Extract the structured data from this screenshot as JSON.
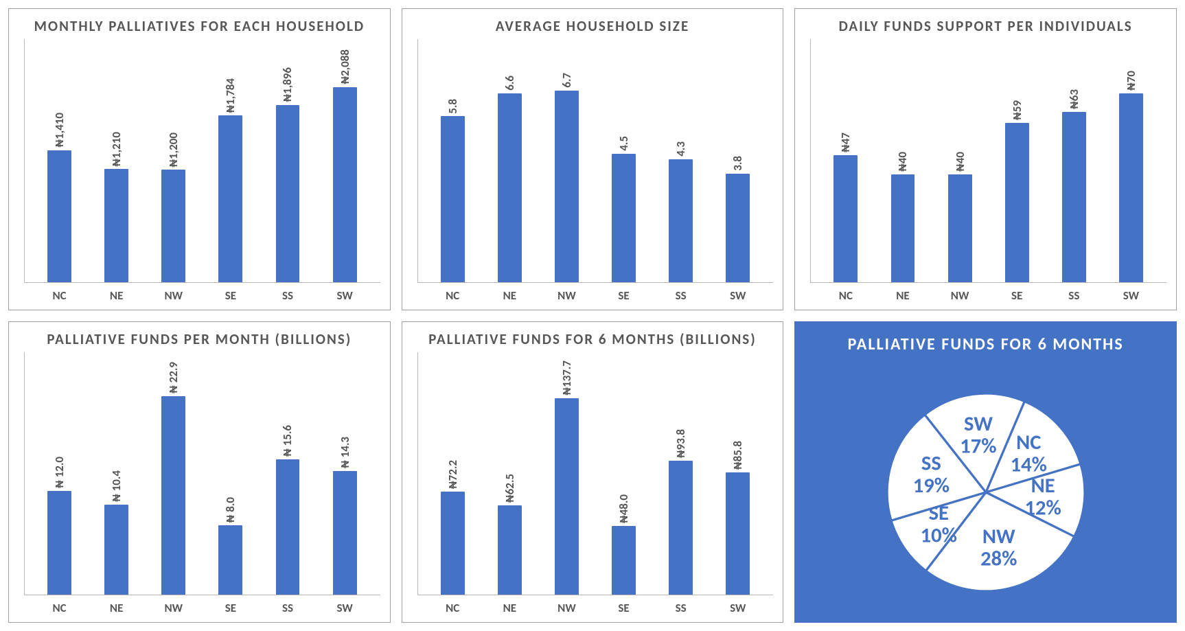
{
  "palette": {
    "bar_color": "#4472c4",
    "pie_bg": "#4472c4",
    "slice_fill": "#ffffff",
    "slice_stroke": "#4472c4",
    "axis_color": "#b7b7b7",
    "text_color": "#575757"
  },
  "categories": [
    "NC",
    "NE",
    "NW",
    "SE",
    "SS",
    "SW"
  ],
  "charts": [
    {
      "id": "monthly_palliatives_household",
      "type": "bar",
      "title": "MONTHLY PALLIATIVES FOR EACH HOUSEHOLD",
      "labels": [
        "₦1,410",
        "₦1,210",
        "₦1,200",
        "₦1,784",
        "₦1,896",
        "₦2,088"
      ],
      "values": [
        1410,
        1210,
        1200,
        1784,
        1896,
        2088
      ],
      "ymax": 2600
    },
    {
      "id": "avg_household_size",
      "type": "bar",
      "title": "AVERAGE HOUSEHOLD SIZE",
      "labels": [
        "5.8",
        "6.6",
        "6.7",
        "4.5",
        "4.3",
        "3.8"
      ],
      "values": [
        5.8,
        6.6,
        6.7,
        4.5,
        4.3,
        3.8
      ],
      "ymax": 8.5
    },
    {
      "id": "daily_funds_per_individual",
      "type": "bar",
      "title": "DAILY FUNDS SUPPORT PER INDIVIDUALS",
      "labels": [
        "₦47",
        "₦40",
        "₦40",
        "₦59",
        "₦63",
        "₦70"
      ],
      "values": [
        47,
        40,
        40,
        59,
        63,
        70
      ],
      "ymax": 90
    },
    {
      "id": "palliative_funds_per_month",
      "type": "bar",
      "title": "PALLIATIVE FUNDS PER MONTH (BILLIONS)",
      "labels": [
        "₦ 12.0",
        "₦ 10.4",
        "₦ 22.9",
        "₦ 8.0",
        "₦ 15.6",
        "₦ 14.3"
      ],
      "values": [
        12.0,
        10.4,
        22.9,
        8.0,
        15.6,
        14.3
      ],
      "ymax": 28
    },
    {
      "id": "palliative_funds_6months",
      "type": "bar",
      "title": "PALLIATIVE FUNDS FOR 6 MONTHS (BILLIONS)",
      "labels": [
        "₦72.2",
        "₦62.5",
        "₦137.7",
        "₦48.0",
        "₦93.8",
        "₦85.8"
      ],
      "values": [
        72.2,
        62.5,
        137.7,
        48.0,
        93.8,
        85.8
      ],
      "ymax": 170
    }
  ],
  "pie": {
    "title": "PALLIATIVE FUNDS FOR 6 MONTHS",
    "slices": [
      {
        "name": "NC",
        "pct": 14
      },
      {
        "name": "NE",
        "pct": 12
      },
      {
        "name": "NW",
        "pct": 28
      },
      {
        "name": "SE",
        "pct": 10
      },
      {
        "name": "SS",
        "pct": 19
      },
      {
        "name": "SW",
        "pct": 17
      }
    ],
    "start_angle_deg": -67
  }
}
